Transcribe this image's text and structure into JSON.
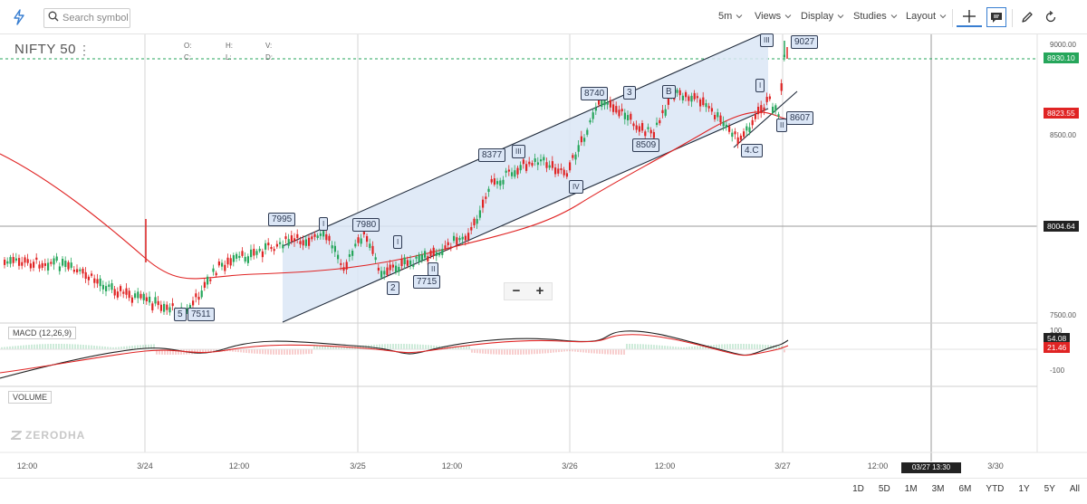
{
  "toolbar": {
    "search_placeholder": "Search symbol",
    "interval": "5m",
    "menus": [
      "Views",
      "Display",
      "Studies",
      "Layout"
    ]
  },
  "chart": {
    "symbol": "NIFTY 50",
    "ohlc_labels": {
      "o": "O:",
      "h": "H:",
      "l": "L:",
      "c": "C:",
      "v": "V:",
      "d": "D:"
    },
    "price_axis": [
      "9000.00",
      "8500.00",
      "7500.00"
    ],
    "price_tags": [
      {
        "text": "8930.10",
        "color": "#26a65b"
      },
      {
        "text": "8823.55",
        "color": "#e02424"
      },
      {
        "text": "8004.64",
        "color": "#222222"
      }
    ],
    "time_axis": [
      "12:00",
      "3/24",
      "12:00",
      "3/25",
      "12:00",
      "3/26",
      "12:00",
      "3/27",
      "12:00",
      "3/30"
    ],
    "cursor_time": "03/27 13:30",
    "wave_labels": [
      "9027",
      "III",
      "8740",
      "3",
      "B",
      "I",
      "8607",
      "II",
      "8377",
      "III",
      "IV",
      "8509",
      "4.C",
      "7995",
      "I",
      "7980",
      "I",
      "II",
      "7715",
      "2",
      "5",
      "7511"
    ],
    "watermark": "ZERODHA",
    "zoom_minus": "−",
    "zoom_plus": "+"
  },
  "macd": {
    "label": "MACD (12,26,9)",
    "axis": [
      "100",
      "-100"
    ],
    "tags": [
      {
        "text": "54.08",
        "color": "#222222"
      },
      {
        "text": "21.46",
        "color": "#e02424"
      }
    ]
  },
  "volume": {
    "label": "VOLUME"
  },
  "ranges": [
    "1D",
    "5D",
    "1M",
    "3M",
    "6M",
    "YTD",
    "1Y",
    "5Y",
    "All"
  ],
  "colors": {
    "up": "#26a65b",
    "down": "#e02424",
    "channel_fill": "#dbe6f6",
    "accent": "#387ed1"
  }
}
